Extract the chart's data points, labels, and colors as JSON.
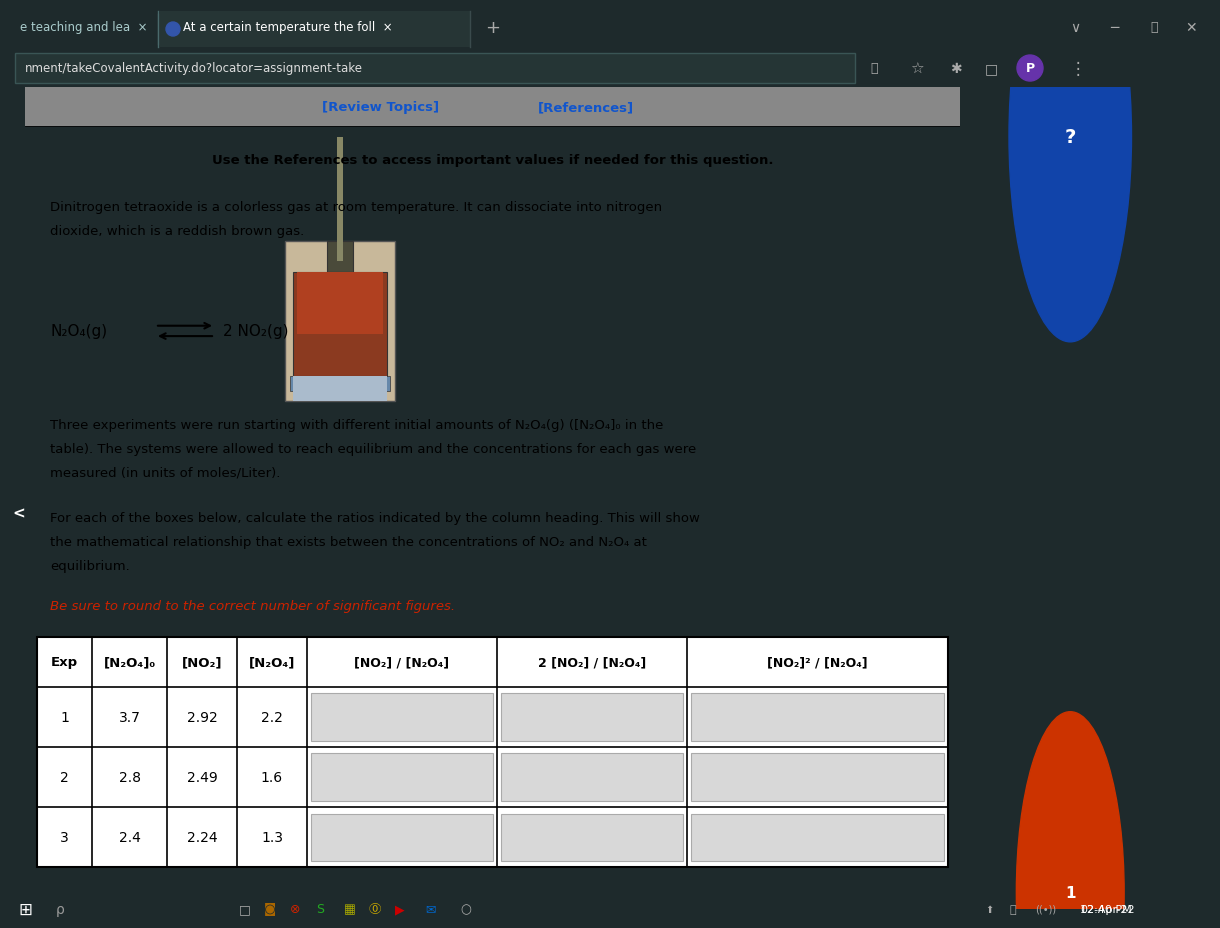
{
  "browser_tab1": "e teaching and lea",
  "browser_tab2": "At a certain temperature the foll",
  "url": "nment/takeCovalentActivity.do?locator=assignment-take",
  "time": "12:40 PM",
  "date": "02-Apr-22",
  "review_topics": "[Review Topics]",
  "references": "[References]",
  "instruction_line": "Use the References to access important values if needed for this question.",
  "para1a": "Dinitrogen tetraoxide is a colorless gas at room temperature. It can dissociate into nitrogen",
  "para1b": "dioxide, which is a reddish brown gas.",
  "eq_left": "N₂O₄(g) ",
  "eq_arrow": "⇌",
  "eq_right": " 2 NO₂(g)",
  "para2a": "Three experiments were run starting with different initial amounts of N₂O₄(g) ([N₂O₄]₀ in the",
  "para2b": "table). The systems were allowed to reach equilibrium and the concentrations for each gas were",
  "para2c": "measured (in units of moles/Liter).",
  "para3a": "For each of the boxes below, calculate the ratios indicated by the column heading. This will show",
  "para3b": "the mathematical relationship that exists between the concentrations of NO₂ and N₂O₄ at",
  "para3c": "equilibrium.",
  "red_text": "Be sure to round to the correct number of significant figures.",
  "col_headers": [
    "Exp",
    "[N₂O₄]₀",
    "[NO₂]",
    "[N₂O₄]",
    "[NO₂] / [N₂O₄]",
    "2 [NO₂] / [N₂O₄]",
    "[NO₂]² / [N₂O₄]"
  ],
  "rows": [
    [
      "1",
      "3.7",
      "2.92",
      "2.2",
      "",
      "",
      ""
    ],
    [
      "2",
      "2.8",
      "2.49",
      "1.6",
      "",
      "",
      ""
    ],
    [
      "3",
      "2.4",
      "2.24",
      "1.3",
      "",
      "",
      ""
    ]
  ],
  "tab_bg": "#1e2d2f",
  "tab_active_bg": "#2e3d40",
  "addr_bar_bg": "#1e3030",
  "content_outer_bg": "#aaaaaa",
  "content_inner_bg": "#ffffff",
  "header_bar_bg": "#909090",
  "sidebar_bg": "#c0c0c0",
  "input_bg": "#d8d8d8",
  "text_dark": "#111111",
  "text_blue": "#1155cc",
  "text_red": "#cc2200",
  "table_border": "#333333",
  "taskbar_bg": "#1a1a1a"
}
